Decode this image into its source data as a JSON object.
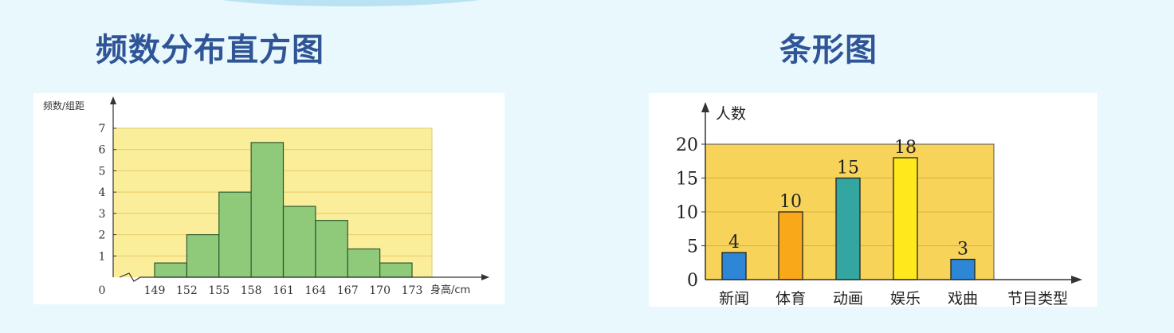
{
  "headings": {
    "histogram": "频数分布直方图",
    "bar_chart": "条形图"
  },
  "colors": {
    "page_background": "#e9f8fd",
    "heading": "#2f5597",
    "plot_background": "#fbee9a",
    "histogram_bar": "#8fc97a",
    "bar_plot_background": "#f7d35a"
  },
  "chart_data": [
    {
      "type": "bar",
      "title": "频数分布直方图",
      "ylabel": "频数/组距",
      "xlabel": "身高/cm",
      "origin_label": "0",
      "x_tick_labels": [
        "149",
        "152",
        "155",
        "158",
        "161",
        "164",
        "167",
        "170",
        "173"
      ],
      "y_tick_labels": [
        "1",
        "2",
        "3",
        "4",
        "5",
        "6",
        "7"
      ],
      "bins": [
        {
          "start": 149,
          "end": 152,
          "value": 0.67
        },
        {
          "start": 152,
          "end": 155,
          "value": 2
        },
        {
          "start": 155,
          "end": 158,
          "value": 4
        },
        {
          "start": 158,
          "end": 161,
          "value": 6.33
        },
        {
          "start": 161,
          "end": 164,
          "value": 3.33
        },
        {
          "start": 164,
          "end": 167,
          "value": 2.67
        },
        {
          "start": 167,
          "end": 170,
          "value": 1.33
        },
        {
          "start": 170,
          "end": 173,
          "value": 0.67
        }
      ],
      "xlim": [
        149,
        173
      ],
      "ylim": [
        0,
        7
      ],
      "grid": true
    },
    {
      "type": "bar",
      "title": "条形图",
      "ylabel": "人数",
      "xlabel": "节目类型",
      "categories": [
        "新闻",
        "体育",
        "动画",
        "娱乐",
        "戏曲"
      ],
      "values": [
        4,
        10,
        15,
        18,
        3
      ],
      "data_labels": [
        "4",
        "10",
        "15",
        "18",
        "3"
      ],
      "bar_colors": [
        "#2e86d6",
        "#f9a81a",
        "#33a6a2",
        "#ffe81c",
        "#2e86d6"
      ],
      "y_tick_labels": [
        "0",
        "5",
        "10",
        "15",
        "20"
      ],
      "ylim": [
        0,
        20
      ],
      "grid": true
    }
  ]
}
